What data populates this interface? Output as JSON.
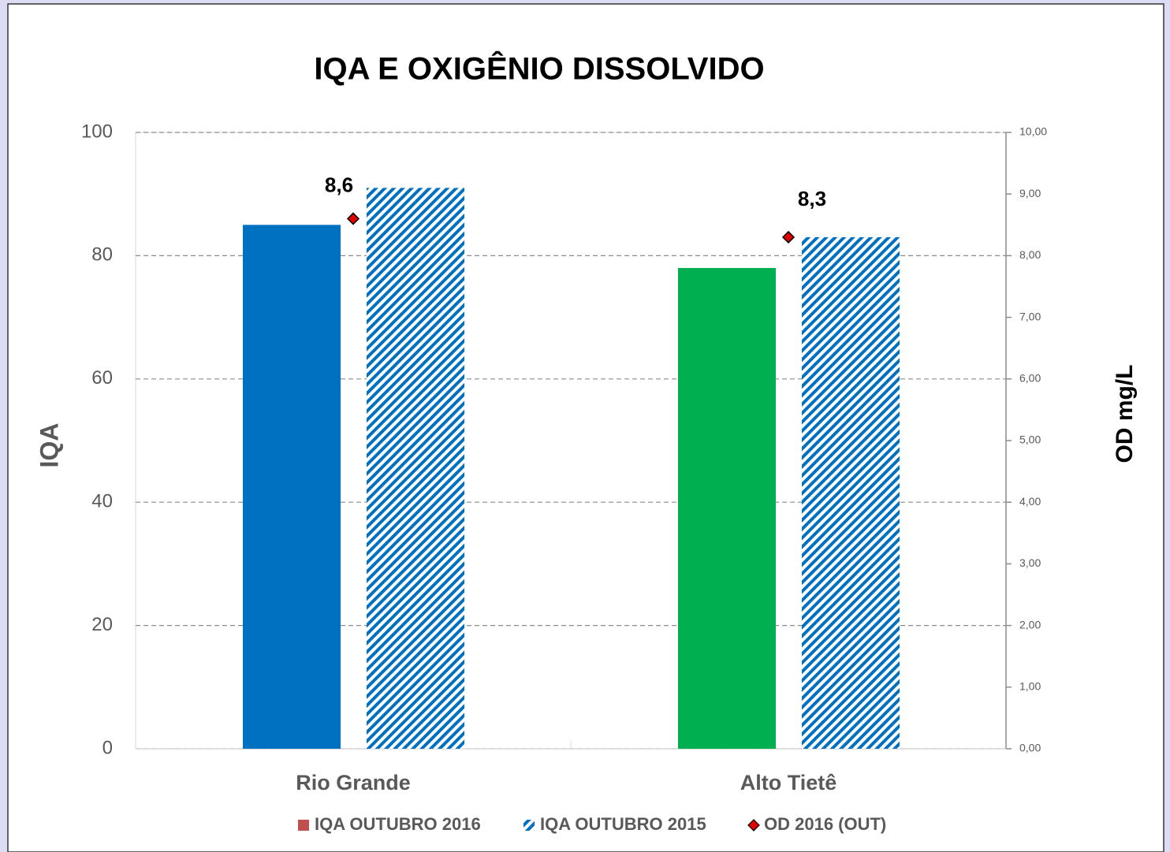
{
  "chart_data": {
    "type": "bar",
    "title": "IQA E OXIGÊNIO DISSOLVIDO",
    "y_label": "IQA",
    "y2_label": "OD mg/L",
    "categories": [
      "Rio Grande",
      "Alto Tietê"
    ],
    "series": [
      {
        "name": "IQA OUTUBRO 2016",
        "color": "#c0504d",
        "colors": [
          "#0070c0",
          "#00b050"
        ],
        "values": [
          85,
          78
        ]
      },
      {
        "name": "IQA OUTUBRO 2015",
        "color": "#0070c0",
        "pattern": "hatch",
        "values": [
          91,
          83
        ]
      },
      {
        "name": "OD 2016 (OUT)",
        "type": "scatter",
        "axis": "y2",
        "color": "#e00000",
        "marker": "diamond",
        "values": [
          8.6,
          8.3
        ],
        "value_labels": [
          "8,6",
          "8,3"
        ]
      }
    ],
    "ylim": [
      0,
      100
    ],
    "yticks": [
      0,
      20,
      40,
      60,
      80,
      100
    ],
    "y2lim": [
      0,
      10
    ],
    "y2ticks": [
      {
        "value": 0,
        "label": "0,00"
      },
      {
        "value": 1,
        "label": "1,00"
      },
      {
        "value": 2,
        "label": "2,00"
      },
      {
        "value": 3,
        "label": "3,00"
      },
      {
        "value": 4,
        "label": "4,00"
      },
      {
        "value": 5,
        "label": "5,00"
      },
      {
        "value": 6,
        "label": "6,00"
      },
      {
        "value": 7,
        "label": "7,00"
      },
      {
        "value": 8,
        "label": "8,00"
      },
      {
        "value": 9,
        "label": "9,00"
      },
      {
        "value": 10,
        "label": "10,00"
      }
    ],
    "grid": true,
    "legend": "bottom"
  }
}
